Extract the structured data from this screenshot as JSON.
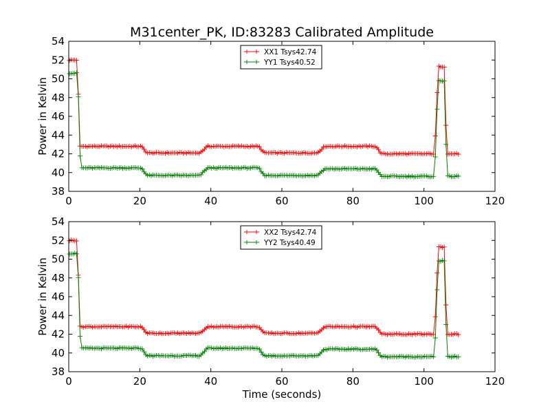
{
  "title": "M31center_PK, ID:83283 Calibrated Amplitude",
  "chart_data": [
    {
      "type": "line",
      "xlabel": "",
      "ylabel": "Power in Kelvin",
      "xlim": [
        0,
        120
      ],
      "ylim": [
        38,
        54
      ],
      "xticks": [
        0,
        20,
        40,
        60,
        80,
        100,
        120
      ],
      "yticks": [
        38,
        40,
        42,
        44,
        46,
        48,
        50,
        52,
        54
      ],
      "grid": false,
      "legend_position": "top-center",
      "marker": "plus",
      "series": [
        {
          "name": "XX1 Tsys42.74",
          "color": "#ff0000",
          "segments": [
            {
              "from": 0,
              "to": 2.5,
              "level": 52.0
            },
            {
              "from": 3.0,
              "to": 20.5,
              "level": 42.8
            },
            {
              "from": 22.0,
              "to": 37.0,
              "level": 42.1
            },
            {
              "from": 39.0,
              "to": 53.5,
              "level": 42.8
            },
            {
              "from": 55.0,
              "to": 70.0,
              "level": 42.1
            },
            {
              "from": 72.0,
              "to": 86.5,
              "level": 42.8
            },
            {
              "from": 88.0,
              "to": 103.0,
              "level": 42.0
            },
            {
              "from": 104.0,
              "to": 106.0,
              "level": 51.3
            },
            {
              "from": 106.3,
              "to": 110.0,
              "level": 42.0
            }
          ]
        },
        {
          "name": "YY1 Tsys40.52",
          "color": "#008000",
          "segments": [
            {
              "from": 0,
              "to": 2.5,
              "level": 50.6
            },
            {
              "from": 3.3,
              "to": 20.5,
              "level": 40.5
            },
            {
              "from": 22.0,
              "to": 37.0,
              "level": 39.7
            },
            {
              "from": 39.0,
              "to": 53.5,
              "level": 40.5
            },
            {
              "from": 55.0,
              "to": 70.0,
              "level": 39.7
            },
            {
              "from": 72.0,
              "to": 86.5,
              "level": 40.4
            },
            {
              "from": 88.0,
              "to": 103.0,
              "level": 39.6
            },
            {
              "from": 104.0,
              "to": 106.0,
              "level": 49.8
            },
            {
              "from": 106.3,
              "to": 110.0,
              "level": 39.6
            }
          ]
        }
      ]
    },
    {
      "type": "line",
      "xlabel": "Time (seconds)",
      "ylabel": "Power in Kelvin",
      "xlim": [
        0,
        120
      ],
      "ylim": [
        38,
        54
      ],
      "xticks": [
        0,
        20,
        40,
        60,
        80,
        100,
        120
      ],
      "yticks": [
        38,
        40,
        42,
        44,
        46,
        48,
        50,
        52,
        54
      ],
      "grid": false,
      "legend_position": "top-center",
      "marker": "plus",
      "series": [
        {
          "name": "XX2 Tsys42.74",
          "color": "#ff0000",
          "segments": [
            {
              "from": 0,
              "to": 2.5,
              "level": 52.0
            },
            {
              "from": 3.0,
              "to": 20.5,
              "level": 42.8
            },
            {
              "from": 22.0,
              "to": 37.0,
              "level": 42.1
            },
            {
              "from": 39.0,
              "to": 53.5,
              "level": 42.8
            },
            {
              "from": 55.0,
              "to": 70.0,
              "level": 42.1
            },
            {
              "from": 72.0,
              "to": 86.5,
              "level": 42.8
            },
            {
              "from": 88.0,
              "to": 103.0,
              "level": 42.0
            },
            {
              "from": 104.0,
              "to": 106.0,
              "level": 51.3
            },
            {
              "from": 106.3,
              "to": 110.0,
              "level": 42.0
            }
          ]
        },
        {
          "name": "YY2 Tsys40.49",
          "color": "#008000",
          "segments": [
            {
              "from": 0,
              "to": 2.5,
              "level": 50.6
            },
            {
              "from": 3.3,
              "to": 20.5,
              "level": 40.5
            },
            {
              "from": 22.0,
              "to": 37.0,
              "level": 39.7
            },
            {
              "from": 39.0,
              "to": 53.5,
              "level": 40.5
            },
            {
              "from": 55.0,
              "to": 70.0,
              "level": 39.7
            },
            {
              "from": 72.0,
              "to": 86.5,
              "level": 40.4
            },
            {
              "from": 88.0,
              "to": 103.0,
              "level": 39.6
            },
            {
              "from": 104.0,
              "to": 106.0,
              "level": 49.8
            },
            {
              "from": 106.3,
              "to": 110.0,
              "level": 39.6
            }
          ]
        }
      ]
    }
  ]
}
